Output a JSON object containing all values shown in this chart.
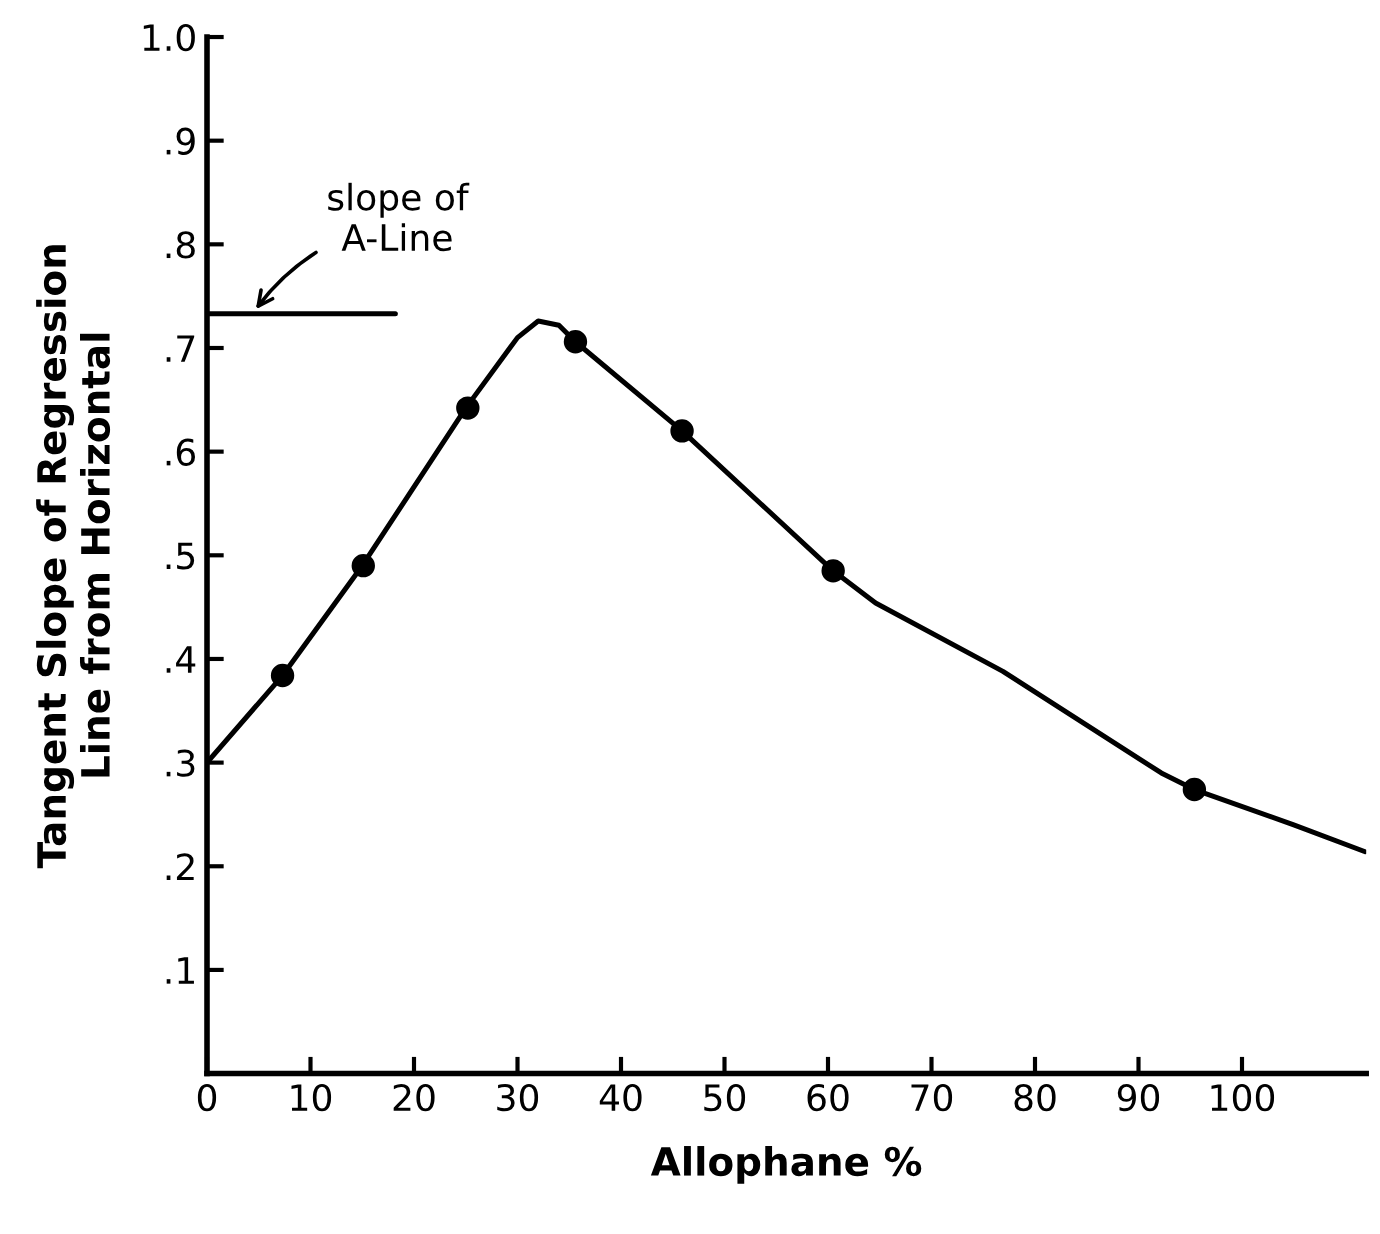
{
  "chart_data": {
    "type": "line",
    "xlabel": "Allophane %",
    "ylabel": "Tangent Slope of Regression\nLine from Horizontal",
    "xlim": [
      0,
      112
    ],
    "ylim": [
      0,
      1.0
    ],
    "xticks": [
      0,
      10,
      20,
      30,
      40,
      50,
      60,
      70,
      80,
      90,
      100
    ],
    "yticks": [
      {
        "value": 0.1,
        "label": ".1"
      },
      {
        "value": 0.2,
        "label": ".2"
      },
      {
        "value": 0.3,
        "label": ".3"
      },
      {
        "value": 0.4,
        "label": ".4"
      },
      {
        "value": 0.5,
        "label": ".5"
      },
      {
        "value": 0.6,
        "label": ".6"
      },
      {
        "value": 0.7,
        "label": ".7"
      },
      {
        "value": 0.8,
        "label": ".8"
      },
      {
        "value": 0.9,
        "label": ".9"
      },
      {
        "value": 1.0,
        "label": "1.0"
      }
    ],
    "grid": false,
    "legend": false,
    "series": [
      {
        "color": "#000000",
        "marker": "none",
        "x": [
          0,
          7.3,
          15,
          25,
          30,
          32,
          34,
          35.6,
          45.9,
          60.5,
          64.6,
          76.9,
          92.2,
          95.4,
          105,
          111.9
        ],
        "values": [
          0.3,
          0.384,
          0.49,
          0.642,
          0.71,
          0.726,
          0.722,
          0.706,
          0.62,
          0.485,
          0.454,
          0.388,
          0.29,
          0.274,
          0.24,
          0.214
        ]
      },
      {
        "type": "scatter",
        "color": "#000000",
        "marker": "circle",
        "x": [
          7.3,
          15.1,
          25.2,
          35.6,
          45.9,
          60.5,
          95.4
        ],
        "values": [
          0.384,
          0.49,
          0.642,
          0.706,
          0.62,
          0.485,
          0.274
        ]
      },
      {
        "color": "#000000",
        "marker": "none",
        "x": [
          0,
          18.2
        ],
        "values": [
          0.733,
          0.733
        ]
      }
    ],
    "annotations": [
      {
        "text": "slope of\nA-Line",
        "x": 4.4,
        "y": 0.733
      }
    ]
  }
}
